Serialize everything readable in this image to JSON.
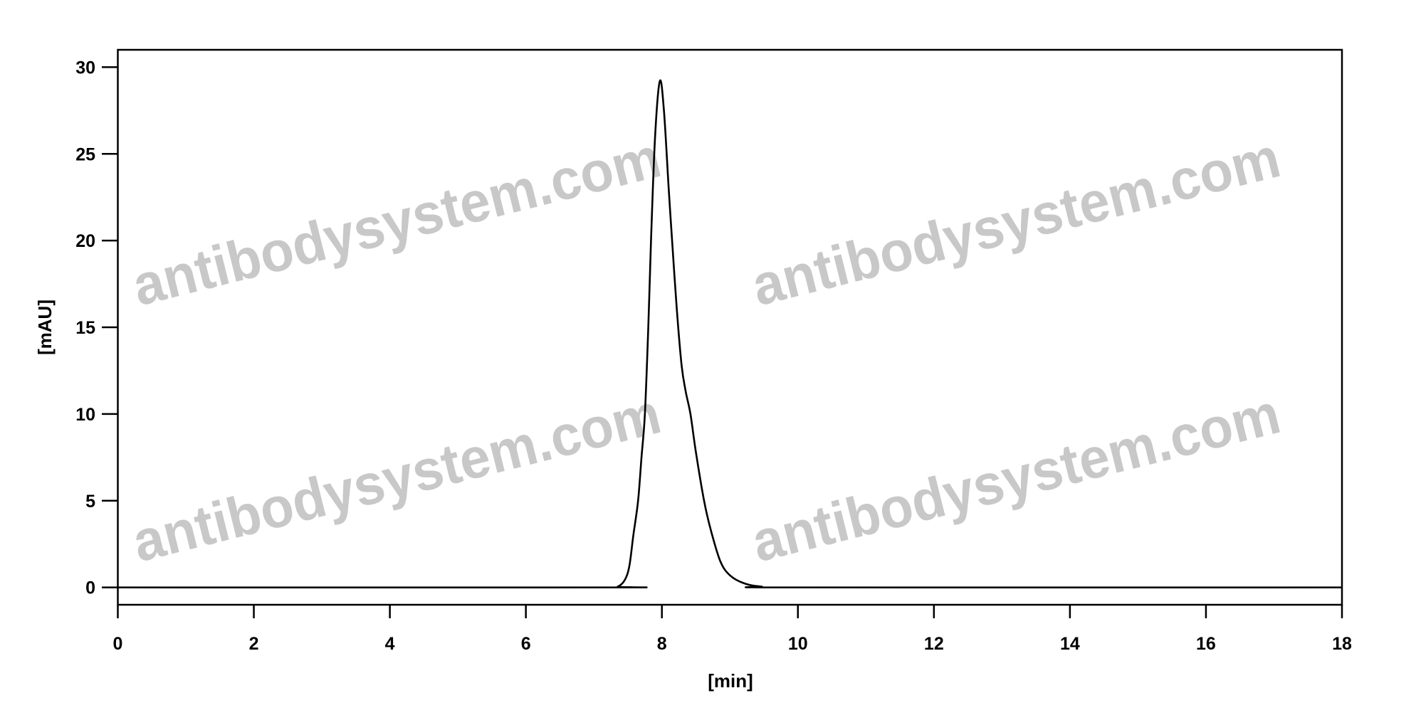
{
  "watermark": "antibodysystem.com",
  "chart_data": {
    "type": "line",
    "title": "",
    "xlabel": "[min]",
    "ylabel": "[mAU]",
    "xlim": [
      0,
      18
    ],
    "ylim": [
      -1,
      31
    ],
    "xticks": [
      0,
      2,
      4,
      6,
      8,
      10,
      12,
      14,
      16,
      18
    ],
    "yticks": [
      0,
      5,
      10,
      15,
      20,
      25,
      30
    ],
    "grid": false,
    "line_color": "#000000",
    "series": [
      {
        "x": [
          0,
          7.2,
          7.35,
          7.45,
          7.52,
          7.58,
          7.65,
          7.7,
          7.75,
          7.8,
          7.84,
          7.9,
          7.97,
          8.03,
          8.1,
          8.15,
          8.22,
          8.29,
          8.35,
          8.42,
          8.5,
          8.62,
          8.72,
          8.86,
          9.0,
          9.2,
          9.46,
          10,
          18
        ],
        "y": [
          0,
          0,
          0.05,
          0.4,
          1.2,
          3,
          5,
          7.5,
          10,
          15,
          20,
          26,
          29.2,
          27.5,
          23,
          20,
          16,
          12.8,
          11.3,
          10,
          7.8,
          5,
          3.3,
          1.5,
          0.7,
          0.25,
          0.05,
          0,
          0
        ]
      }
    ]
  }
}
